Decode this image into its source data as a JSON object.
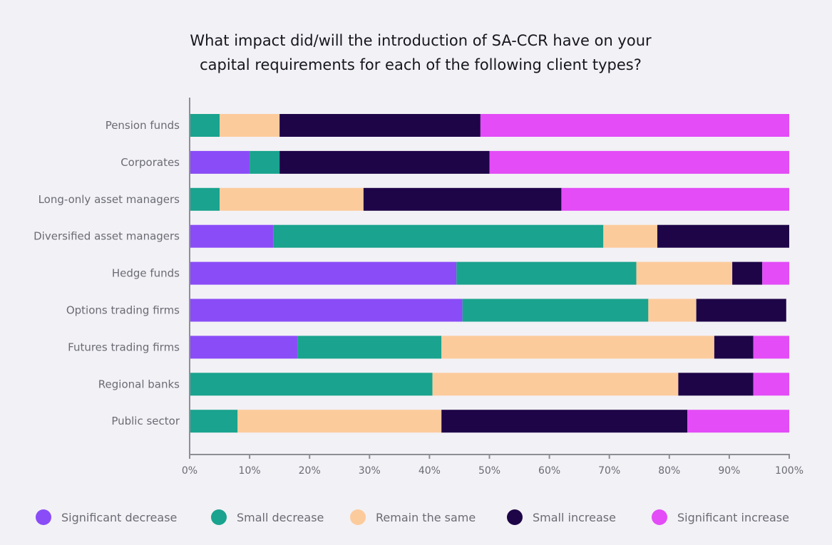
{
  "chart_data": {
    "type": "bar",
    "orientation": "horizontal",
    "stacked": true,
    "title_lines": [
      "What impact did/will the introduction of SA-CCR have on your",
      "capital requirements for each of the following client types?"
    ],
    "categories": [
      "Pension funds",
      "Corporates",
      "Long-only asset managers",
      "Diversified asset managers",
      "Hedge funds",
      "Options trading firms",
      "Futures trading firms",
      "Regional banks",
      "Public sector"
    ],
    "series": [
      {
        "name": "Significant decrease",
        "color": "#8a4cf7",
        "values": [
          0,
          10,
          0,
          14,
          44.5,
          45.5,
          18,
          0,
          0
        ]
      },
      {
        "name": "Small decrease",
        "color": "#1aa38e",
        "values": [
          5,
          5,
          5,
          55,
          30,
          31,
          24,
          40.5,
          8
        ]
      },
      {
        "name": "Remain the same",
        "color": "#fccb9c",
        "values": [
          10,
          0,
          24,
          9,
          16,
          8,
          45.5,
          41,
          34
        ]
      },
      {
        "name": "Small increase",
        "color": "#1e0548",
        "values": [
          33.5,
          35,
          33,
          22,
          5,
          15,
          6.5,
          12.5,
          41
        ]
      },
      {
        "name": "Significant increase",
        "color": "#e34cf7",
        "values": [
          51.5,
          50,
          38,
          0,
          4.5,
          0,
          6,
          6,
          17
        ]
      }
    ],
    "xlim": [
      0,
      100
    ],
    "x_ticks": [
      "0%",
      "10%",
      "20%",
      "30%",
      "40%",
      "50%",
      "60%",
      "70%",
      "80%",
      "90%",
      "100%"
    ],
    "legend_position": "bottom",
    "grid": false
  }
}
